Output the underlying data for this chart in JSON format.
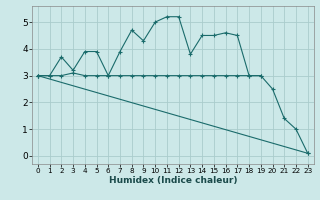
{
  "xlabel": "Humidex (Indice chaleur)",
  "bg_color": "#cce8e8",
  "grid_color": "#aacccc",
  "line_color": "#1a6b6b",
  "xlim": [
    -0.5,
    23.5
  ],
  "ylim": [
    -0.3,
    5.6
  ],
  "xticks": [
    0,
    1,
    2,
    3,
    4,
    5,
    6,
    7,
    8,
    9,
    10,
    11,
    12,
    13,
    14,
    15,
    16,
    17,
    18,
    19,
    20,
    21,
    22,
    23
  ],
  "yticks": [
    0,
    1,
    2,
    3,
    4,
    5
  ],
  "series1_x": [
    0,
    1,
    2,
    3,
    4,
    5,
    6,
    7,
    8,
    9,
    10,
    11,
    12,
    13,
    14,
    15,
    16,
    17,
    18,
    19,
    20,
    21,
    22,
    23
  ],
  "series1_y": [
    3.0,
    3.0,
    3.7,
    3.2,
    3.9,
    3.9,
    3.0,
    3.9,
    4.7,
    4.3,
    5.0,
    5.2,
    5.2,
    3.8,
    4.5,
    4.5,
    4.6,
    4.5,
    3.0,
    3.0,
    2.5,
    1.4,
    1.0,
    0.1
  ],
  "series2_x": [
    0,
    1,
    2,
    3,
    4,
    5,
    6,
    7,
    8,
    9,
    10,
    11,
    12,
    13,
    14,
    15,
    16,
    17,
    18,
    19
  ],
  "series2_y": [
    3.0,
    3.0,
    3.0,
    3.1,
    3.0,
    3.0,
    3.0,
    3.0,
    3.0,
    3.0,
    3.0,
    3.0,
    3.0,
    3.0,
    3.0,
    3.0,
    3.0,
    3.0,
    3.0,
    3.0
  ],
  "series3_x": [
    0,
    23
  ],
  "series3_y": [
    3.0,
    0.1
  ]
}
